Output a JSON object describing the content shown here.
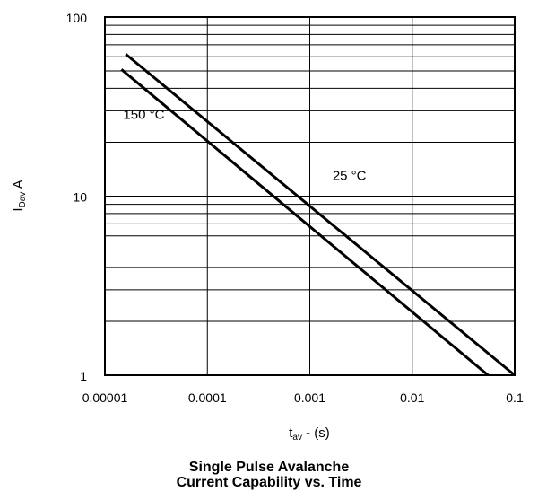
{
  "chart_data": {
    "type": "line",
    "title": "Single Pulse Avalanche Current Capability vs. Time",
    "title_lines": [
      "Single Pulse Avalanche",
      "Current Capability vs. Time"
    ],
    "xlabel": {
      "main": "t",
      "sub": "av",
      "rest": " - (s)"
    },
    "ylabel": {
      "main": "I",
      "sub": "Dav",
      "rest": " A"
    },
    "x_scale": "log",
    "y_scale": "log",
    "xlim": [
      1e-05,
      0.1
    ],
    "ylim": [
      1,
      100
    ],
    "grid": true,
    "x_ticks": [
      {
        "value": 1e-05,
        "label": "0.00001"
      },
      {
        "value": 0.0001,
        "label": "0.0001"
      },
      {
        "value": 0.001,
        "label": "0.001"
      },
      {
        "value": 0.01,
        "label": "0.01"
      },
      {
        "value": 0.1,
        "label": "0.1"
      }
    ],
    "y_ticks": [
      {
        "value": 1,
        "label": "1"
      },
      {
        "value": 10,
        "label": "10"
      },
      {
        "value": 100,
        "label": "100"
      }
    ],
    "series": [
      {
        "name": "25 °C",
        "x": [
          1.6e-05,
          0.1
        ],
        "y": [
          62,
          1.0
        ],
        "color": "#000000"
      },
      {
        "name": "150 °C",
        "x": [
          1.45e-05,
          0.055
        ],
        "y": [
          51,
          1.0
        ],
        "color": "#000000"
      }
    ],
    "annotations": [
      {
        "text": "150 °C",
        "x": 1.45e-05,
        "y": 27
      },
      {
        "text": "25 °C",
        "x": 0.0016,
        "y": 12.3
      }
    ]
  }
}
